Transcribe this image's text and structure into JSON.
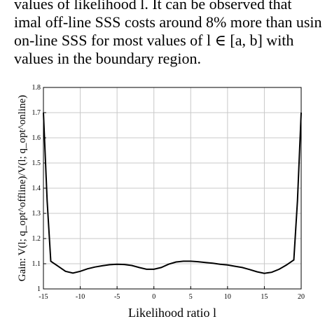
{
  "paragraph": {
    "line1": "values of likelihood l. It can be observed that",
    "line2": "imal off-line SSS costs around 8% more than usin",
    "line3": "on-line SSS for most values of l ∈ [a, b] with",
    "line4": "values in the boundary region."
  },
  "chart_data": {
    "type": "line",
    "title": "",
    "xlabel": "Likelihood ratio l",
    "ylabel": "Gain: V(l; q_opt^offline)/V(l; q_opt^online)",
    "xlim": [
      -15,
      20
    ],
    "ylim": [
      1,
      1.8
    ],
    "grid": true,
    "x_ticks": [
      "-15",
      "-10",
      "-5",
      "0",
      "5",
      "10",
      "15",
      "20"
    ],
    "y_ticks": [
      "1",
      "1.1",
      "1.2",
      "1.3",
      "1.4",
      "1.5",
      "1.6",
      "1.7",
      "1.8"
    ],
    "series": [
      {
        "x": [
          -15,
          -14.5,
          -14,
          -13,
          -12,
          -11,
          -10,
          -9,
          -8,
          -7,
          -6,
          -5,
          -4,
          -3,
          -2,
          -1,
          0,
          1,
          2,
          3,
          4,
          5,
          6,
          7,
          8,
          9,
          10,
          11,
          12,
          13,
          14,
          15,
          16,
          17,
          18,
          19,
          19.5,
          20
        ],
        "y": [
          1.7,
          1.35,
          1.11,
          1.09,
          1.07,
          1.063,
          1.07,
          1.08,
          1.087,
          1.092,
          1.096,
          1.098,
          1.097,
          1.093,
          1.085,
          1.078,
          1.078,
          1.085,
          1.098,
          1.107,
          1.11,
          1.11,
          1.108,
          1.105,
          1.102,
          1.098,
          1.095,
          1.09,
          1.085,
          1.077,
          1.068,
          1.062,
          1.066,
          1.078,
          1.095,
          1.115,
          1.35,
          1.7
        ]
      }
    ]
  }
}
